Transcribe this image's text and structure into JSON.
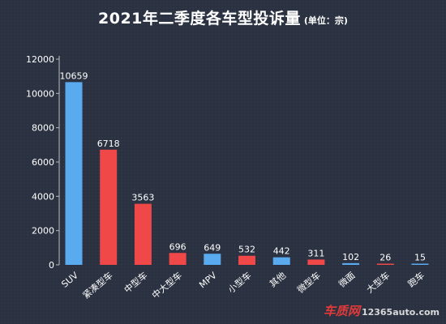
{
  "title": {
    "main": "2021年二季度各车型投诉量",
    "unit": "(单位：宗)"
  },
  "watermark": {
    "brand": "车质网",
    "site": "12365auto.com"
  },
  "colors": {
    "blue": "#5aaaf0",
    "red": "#f04848",
    "axis": "#bbbbbb"
  },
  "chart_data": {
    "type": "bar",
    "categories": [
      "SUV",
      "紧凑型车",
      "中型车",
      "中大型车",
      "MPV",
      "小型车",
      "其他",
      "微型车",
      "微面",
      "大型车",
      "跑车"
    ],
    "values": [
      10659,
      6718,
      3563,
      696,
      649,
      532,
      442,
      311,
      102,
      26,
      15
    ],
    "value_labels": [
      "10659",
      "6718",
      "3563",
      "696",
      "649",
      "532",
      "442",
      "311",
      "102",
      "26",
      "15"
    ],
    "bar_colors": [
      "blue",
      "red",
      "red",
      "red",
      "blue",
      "red",
      "blue",
      "red",
      "blue",
      "red",
      "blue"
    ],
    "y_ticks": [
      0,
      2000,
      4000,
      6000,
      8000,
      10000,
      12000
    ],
    "y_tick_labels": [
      "0",
      "2000",
      "4000",
      "6000",
      "8000",
      "10000",
      "12000"
    ],
    "ylim": [
      0,
      12000
    ],
    "grid": false,
    "legend": "none",
    "xlabel": "",
    "ylabel": ""
  }
}
